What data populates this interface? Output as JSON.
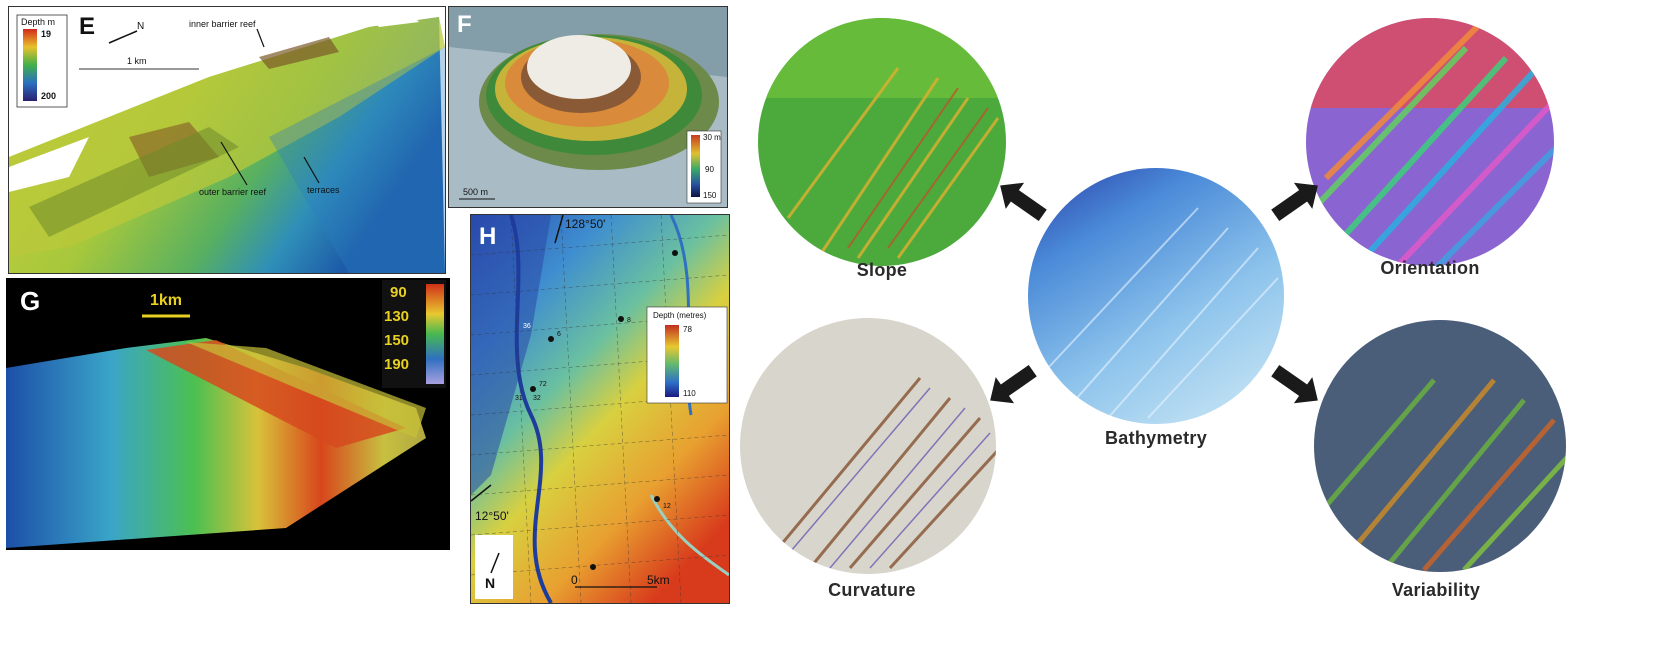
{
  "panels": {
    "e": {
      "letter": "E",
      "legend_title": "Depth m",
      "legend_min": "19",
      "legend_max": "200",
      "north": "N",
      "scale": "1 km",
      "label_inner": "inner barrier reef",
      "label_outer": "outer barrier reef",
      "label_terraces": "terraces"
    },
    "f": {
      "letter": "F",
      "legend_top": "30 m",
      "legend_mid": "90",
      "legend_bottom": "150",
      "scale": "500 m"
    },
    "g": {
      "letter": "G",
      "scale": "1km",
      "legend_values": [
        "90",
        "130",
        "150",
        "190"
      ]
    },
    "h": {
      "letter": "H",
      "lon": "128°50'",
      "lat": "12°50'",
      "legend_title": "Depth (metres)",
      "legend_top": "78",
      "legend_bottom": "110",
      "north": "N",
      "scale_start": "0",
      "scale_end": "5km",
      "stations": [
        "36",
        "6",
        "8",
        "72",
        "31",
        "32",
        "12"
      ]
    }
  },
  "workflow": {
    "center": "Bathymetry",
    "derivatives": [
      "Slope",
      "Orientation",
      "Curvature",
      "Variability"
    ]
  }
}
